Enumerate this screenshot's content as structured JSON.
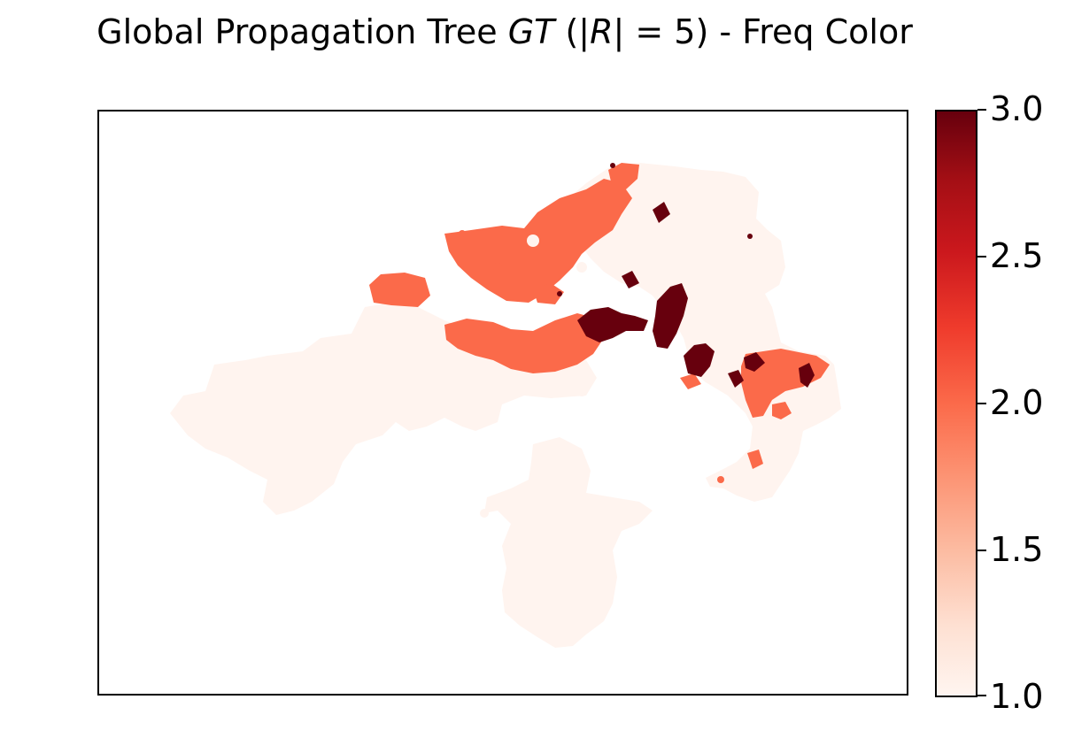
{
  "chart_data": {
    "type": "heatmap",
    "title": {
      "prefix": "Global Propagation Tree ",
      "italic": "GT",
      "middle": " (|",
      "italic2": "R",
      "suffix": "| =  5) - Freq Color"
    },
    "xlabel": "",
    "ylabel": "",
    "colormap": "Reds",
    "colorbar": {
      "range": [
        1.0,
        3.0
      ],
      "ticks": [
        "1.0",
        "1.5",
        "2.0",
        "2.5",
        "3.0"
      ],
      "tick_values": [
        1.0,
        1.5,
        2.0,
        2.5,
        3.0
      ]
    },
    "frequency_levels": [
      1.0,
      2.0,
      3.0
    ],
    "colors": {
      "level_1": "#fff4ef",
      "level_2": "#fb6a4a",
      "level_3": "#67000d"
    }
  }
}
